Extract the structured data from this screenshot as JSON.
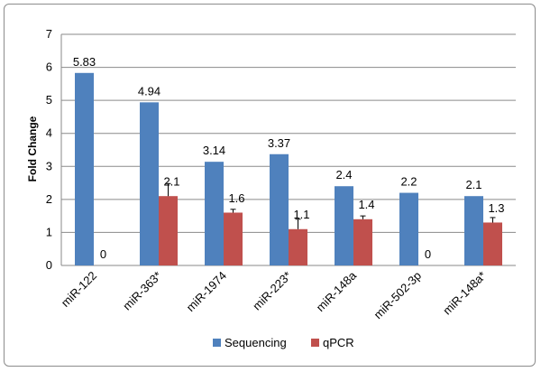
{
  "chart_data": {
    "type": "bar",
    "title": "",
    "xlabel": "",
    "ylabel": "Fold Change",
    "ylim": [
      0,
      7
    ],
    "yticks": [
      "0",
      "1",
      "2",
      "3",
      "4",
      "5",
      "6",
      "7"
    ],
    "grid": true,
    "legend_position": "bottom",
    "categories": [
      "miR-122",
      "miR-363*",
      "miR-1974",
      "miR-223*",
      "miR-148a",
      "miR-502-3p",
      "miR-148a*"
    ],
    "series": [
      {
        "name": "Sequencing",
        "color": "#4f81bd",
        "values": [
          5.83,
          4.94,
          3.14,
          3.37,
          2.4,
          2.2,
          2.1
        ],
        "labels": [
          "5.83",
          "4.94",
          "3.14",
          "3.37",
          "2.4",
          "2.2",
          "2.1"
        ]
      },
      {
        "name": "qPCR",
        "color": "#c0504d",
        "values": [
          0,
          2.1,
          1.6,
          1.1,
          1.4,
          0,
          1.3
        ],
        "labels": [
          "0",
          "2.1",
          "1.6",
          "1.1",
          "1.4",
          "0",
          "1.3"
        ],
        "error_upper": [
          0,
          0.38,
          0.1,
          0.3,
          0.1,
          0,
          0.15
        ]
      }
    ]
  }
}
